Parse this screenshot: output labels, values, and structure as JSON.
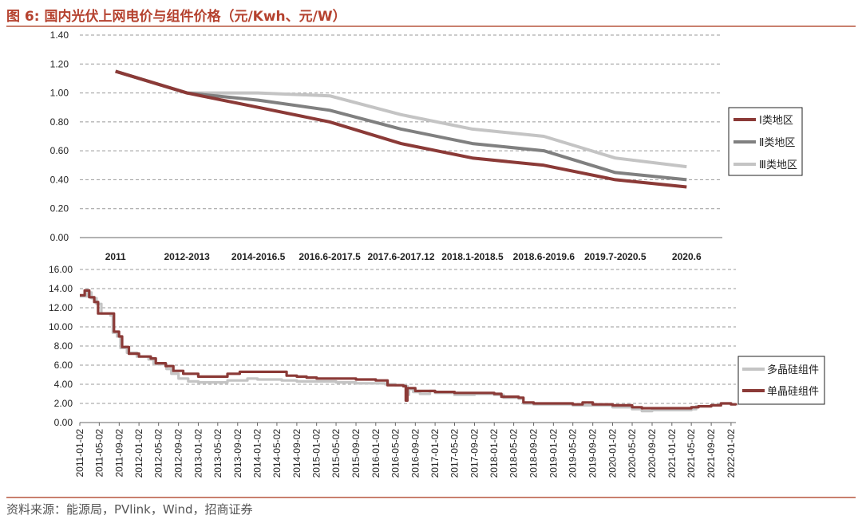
{
  "header": {
    "title": "图 6:  国内光伏上网电价与组件价格（元/Kwh、元/W）"
  },
  "footer": {
    "source": "资料来源：能源局，PVlink，Wind，招商证券"
  },
  "colors": {
    "accent": "#c9806e",
    "title": "#b5422f",
    "series_dark_red": "#8b3a37",
    "series_dark_gray": "#808080",
    "series_light_gray": "#c4c4c4"
  },
  "chart_data": [
    {
      "type": "line",
      "title": "",
      "xlabel": "",
      "ylabel": "",
      "categories": [
        "2011",
        "2012-2013",
        "2014-2016.5",
        "2016.6-2017.5",
        "2017.6-2017.12",
        "2018.1-2018.5",
        "2018.6-2019.6",
        "2019.7-2020.5",
        "2020.6"
      ],
      "ylim": [
        0,
        1.4
      ],
      "yticks": [
        "0.00",
        "0.20",
        "0.40",
        "0.60",
        "0.80",
        "1.00",
        "1.20",
        "1.40"
      ],
      "grid": true,
      "legend_position": "right",
      "series": [
        {
          "name": "Ⅰ类地区",
          "color": "#8b3a37",
          "values": [
            1.15,
            1.0,
            0.9,
            0.8,
            0.65,
            0.55,
            0.5,
            0.4,
            0.35
          ]
        },
        {
          "name": "Ⅱ类地区",
          "color": "#808080",
          "values": [
            1.15,
            1.0,
            0.95,
            0.88,
            0.75,
            0.65,
            0.6,
            0.45,
            0.4
          ]
        },
        {
          "name": "Ⅲ类地区",
          "color": "#c4c4c4",
          "values": [
            1.15,
            1.0,
            1.0,
            0.98,
            0.85,
            0.75,
            0.7,
            0.55,
            0.49
          ]
        }
      ]
    },
    {
      "type": "line",
      "title": "",
      "xlabel": "",
      "ylabel": "",
      "x_range": [
        "2011-01-02",
        "2022-02-01"
      ],
      "xticks": [
        "2011-01-02",
        "2011-05-02",
        "2011-09-02",
        "2012-01-02",
        "2012-05-02",
        "2012-09-02",
        "2013-01-02",
        "2013-05-02",
        "2013-09-02",
        "2014-01-02",
        "2014-05-02",
        "2014-09-02",
        "2015-01-02",
        "2015-05-02",
        "2015-09-02",
        "2016-01-02",
        "2016-05-02",
        "2016-09-02",
        "2017-01-02",
        "2017-05-02",
        "2017-09-02",
        "2018-01-02",
        "2018-05-02",
        "2018-09-02",
        "2019-01-02",
        "2019-05-02",
        "2019-09-02",
        "2020-01-02",
        "2020-05-02",
        "2020-09-02",
        "2021-01-02",
        "2021-05-02",
        "2021-09-02",
        "2022-01-02"
      ],
      "ylim": [
        0,
        16
      ],
      "yticks": [
        "0.00",
        "2.00",
        "4.00",
        "6.00",
        "8.00",
        "10.00",
        "12.00",
        "14.00",
        "16.00"
      ],
      "grid": true,
      "legend_position": "right",
      "series": [
        {
          "name": "多晶硅组件",
          "color": "#c4c4c4",
          "points": [
            [
              "2011-01-02",
              13.2
            ],
            [
              "2011-02-15",
              13.6
            ],
            [
              "2011-03-15",
              13.0
            ],
            [
              "2011-04-15",
              12.4
            ],
            [
              "2011-05-15",
              11.4
            ],
            [
              "2011-07-10",
              11.2
            ],
            [
              "2011-07-25",
              9.4
            ],
            [
              "2011-08-20",
              9.0
            ],
            [
              "2011-09-10",
              7.8
            ],
            [
              "2011-10-20",
              7.3
            ],
            [
              "2011-12-20",
              6.9
            ],
            [
              "2012-03-01",
              6.6
            ],
            [
              "2012-04-01",
              6.1
            ],
            [
              "2012-06-20",
              5.6
            ],
            [
              "2012-07-20",
              5.1
            ],
            [
              "2012-09-02",
              4.6
            ],
            [
              "2012-11-01",
              4.3
            ],
            [
              "2013-01-02",
              4.2
            ],
            [
              "2013-06-01",
              4.2
            ],
            [
              "2013-07-01",
              4.4
            ],
            [
              "2013-11-01",
              4.6
            ],
            [
              "2014-01-02",
              4.5
            ],
            [
              "2014-06-01",
              4.4
            ],
            [
              "2014-09-02",
              4.3
            ],
            [
              "2015-01-02",
              4.3
            ],
            [
              "2015-05-02",
              4.2
            ],
            [
              "2015-09-02",
              4.1
            ],
            [
              "2016-01-02",
              4.1
            ],
            [
              "2016-03-01",
              4.0
            ],
            [
              "2016-05-02",
              3.9
            ],
            [
              "2016-07-01",
              3.8
            ],
            [
              "2016-07-15",
              2.9
            ],
            [
              "2016-07-25",
              3.5
            ],
            [
              "2016-08-20",
              3.2
            ],
            [
              "2016-10-01",
              3.0
            ],
            [
              "2016-12-01",
              3.3
            ],
            [
              "2017-01-02",
              3.1
            ],
            [
              "2017-05-02",
              2.9
            ],
            [
              "2017-09-02",
              3.0
            ],
            [
              "2018-01-02",
              2.9
            ],
            [
              "2018-03-01",
              2.6
            ],
            [
              "2018-06-01",
              2.5
            ],
            [
              "2018-07-01",
              2.0
            ],
            [
              "2018-09-02",
              1.9
            ],
            [
              "2019-01-02",
              1.9
            ],
            [
              "2019-05-02",
              1.8
            ],
            [
              "2019-09-02",
              1.8
            ],
            [
              "2020-01-02",
              1.6
            ],
            [
              "2020-05-02",
              1.4
            ],
            [
              "2020-07-01",
              1.2
            ],
            [
              "2020-09-02",
              1.3
            ],
            [
              "2021-01-02",
              1.3
            ],
            [
              "2021-05-02",
              1.4
            ],
            [
              "2021-06-01",
              1.7
            ],
            [
              "2021-09-02",
              1.8
            ],
            [
              "2021-11-01",
              2.0
            ],
            [
              "2022-01-02",
              1.9
            ],
            [
              "2022-02-01",
              1.8
            ]
          ]
        },
        {
          "name": "单晶硅组件",
          "color": "#8b3a37",
          "points": [
            [
              "2011-01-02",
              13.3
            ],
            [
              "2011-02-01",
              13.8
            ],
            [
              "2011-03-01",
              13.1
            ],
            [
              "2011-04-01",
              12.6
            ],
            [
              "2011-04-25",
              11.4
            ],
            [
              "2011-07-15",
              11.4
            ],
            [
              "2011-08-01",
              9.5
            ],
            [
              "2011-09-01",
              9.0
            ],
            [
              "2011-09-20",
              7.9
            ],
            [
              "2011-11-01",
              7.2
            ],
            [
              "2012-01-02",
              6.9
            ],
            [
              "2012-03-15",
              6.7
            ],
            [
              "2012-04-15",
              6.2
            ],
            [
              "2012-06-15",
              5.9
            ],
            [
              "2012-08-01",
              5.4
            ],
            [
              "2012-10-01",
              5.1
            ],
            [
              "2013-01-02",
              4.8
            ],
            [
              "2013-06-01",
              4.8
            ],
            [
              "2013-07-01",
              5.1
            ],
            [
              "2013-09-15",
              5.3
            ],
            [
              "2014-01-02",
              5.3
            ],
            [
              "2014-05-02",
              5.3
            ],
            [
              "2014-06-20",
              5.3
            ],
            [
              "2014-07-01",
              4.9
            ],
            [
              "2014-09-02",
              4.8
            ],
            [
              "2014-11-01",
              4.7
            ],
            [
              "2015-01-02",
              4.6
            ],
            [
              "2015-05-02",
              4.6
            ],
            [
              "2015-09-02",
              4.5
            ],
            [
              "2016-01-02",
              4.4
            ],
            [
              "2016-03-15",
              3.9
            ],
            [
              "2016-06-20",
              3.8
            ],
            [
              "2016-07-05",
              2.3
            ],
            [
              "2016-07-15",
              3.6
            ],
            [
              "2016-09-02",
              3.3
            ],
            [
              "2016-11-01",
              3.3
            ],
            [
              "2017-01-02",
              3.2
            ],
            [
              "2017-05-02",
              3.1
            ],
            [
              "2017-09-02",
              3.1
            ],
            [
              "2018-01-02",
              3.0
            ],
            [
              "2018-02-15",
              2.7
            ],
            [
              "2018-06-01",
              2.6
            ],
            [
              "2018-07-01",
              2.1
            ],
            [
              "2018-09-02",
              2.0
            ],
            [
              "2019-01-02",
              2.0
            ],
            [
              "2019-05-02",
              1.9
            ],
            [
              "2019-07-01",
              2.1
            ],
            [
              "2019-09-02",
              1.9
            ],
            [
              "2020-01-02",
              1.8
            ],
            [
              "2020-05-02",
              1.6
            ],
            [
              "2020-07-01",
              1.5
            ],
            [
              "2020-09-02",
              1.5
            ],
            [
              "2021-01-02",
              1.5
            ],
            [
              "2021-05-02",
              1.6
            ],
            [
              "2021-06-15",
              1.7
            ],
            [
              "2021-09-02",
              1.8
            ],
            [
              "2021-11-01",
              2.0
            ],
            [
              "2022-01-02",
              1.9
            ],
            [
              "2022-02-01",
              1.8
            ]
          ]
        }
      ]
    }
  ]
}
